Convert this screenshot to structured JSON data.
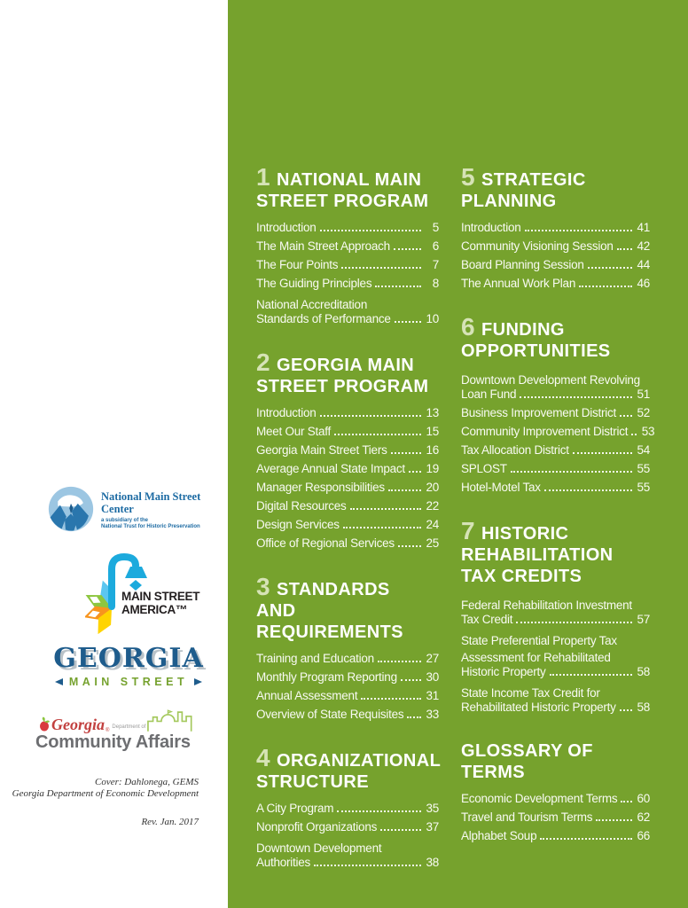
{
  "colors": {
    "green_background": "#76a22d",
    "section_number": "#d6e3b6",
    "heading_text": "#ffffff",
    "item_text": "#f8faf3",
    "nmsc_blue": "#1d6ba3",
    "msa_teal": "#1caadd",
    "gms_blue": "#1e5c8c",
    "gms_green": "#76a22f",
    "dca_red": "#c2403f",
    "dca_gray": "#6d6e71",
    "dca_skyline_green": "#a5c95e"
  },
  "left_panel": {
    "nmsc": {
      "name_line1": "National Main Street",
      "name_line2": "Center",
      "tagline_line1": "a subsidiary of the",
      "tagline_line2": "National Trust for Historic Preservation"
    },
    "msa": {
      "line1": "MAIN STREET",
      "line2": "AMERICA™"
    },
    "gms": {
      "line1": "GEORGIA",
      "line2": "MAIN STREET"
    },
    "dca": {
      "georgia": "Georgia",
      "registered": "®",
      "dept": "Department of",
      "name": "Community Affairs"
    },
    "caption_line1": "Cover: Dahlonega, GEMS",
    "caption_line2": "Georgia Department of Economic Development",
    "revision": "Rev. Jan. 2017"
  },
  "toc": {
    "columns": [
      {
        "sections": [
          {
            "number": "1",
            "title": "NATIONAL MAIN\nSTREET PROGRAM",
            "items": [
              {
                "lines": [
                  "Introduction"
                ],
                "page": "5"
              },
              {
                "lines": [
                  "The Main Street Approach"
                ],
                "page": "6"
              },
              {
                "lines": [
                  "The Four Points"
                ],
                "page": "7"
              },
              {
                "lines": [
                  "The Guiding Principles"
                ],
                "page": "8"
              },
              {
                "lines": [
                  "National Accreditation",
                  "Standards of Performance"
                ],
                "page": "10"
              }
            ]
          },
          {
            "number": "2",
            "title": "GEORGIA MAIN\nSTREET PROGRAM",
            "items": [
              {
                "lines": [
                  "Introduction"
                ],
                "page": "13"
              },
              {
                "lines": [
                  "Meet Our Staff"
                ],
                "page": "15"
              },
              {
                "lines": [
                  "Georgia Main Street Tiers"
                ],
                "page": "16"
              },
              {
                "lines": [
                  "Average Annual State Impact"
                ],
                "page": "19"
              },
              {
                "lines": [
                  "Manager Responsibilities"
                ],
                "page": "20"
              },
              {
                "lines": [
                  "Digital Resources"
                ],
                "page": "22"
              },
              {
                "lines": [
                  "Design Services"
                ],
                "page": "24"
              },
              {
                "lines": [
                  "Office of Regional Services"
                ],
                "page": "25"
              }
            ]
          },
          {
            "number": "3",
            "title": "STANDARDS\nAND REQUIREMENTS",
            "items": [
              {
                "lines": [
                  "Training and Education"
                ],
                "page": "27"
              },
              {
                "lines": [
                  "Monthly Program Reporting"
                ],
                "page": "30"
              },
              {
                "lines": [
                  "Annual Assessment"
                ],
                "page": "31"
              },
              {
                "lines": [
                  "Overview of State Requisites"
                ],
                "page": "33"
              }
            ]
          },
          {
            "number": "4",
            "title": "ORGANIZATIONAL\nSTRUCTURE",
            "items": [
              {
                "lines": [
                  "A City Program"
                ],
                "page": "35"
              },
              {
                "lines": [
                  "Nonprofit Organizations"
                ],
                "page": "37"
              },
              {
                "lines": [
                  "Downtown Development",
                  "Authorities"
                ],
                "page": "38"
              }
            ]
          }
        ]
      },
      {
        "sections": [
          {
            "number": "5",
            "title": "STRATEGIC\nPLANNING",
            "items": [
              {
                "lines": [
                  "Introduction"
                ],
                "page": "41"
              },
              {
                "lines": [
                  "Community Visioning Session"
                ],
                "page": "42"
              },
              {
                "lines": [
                  "Board Planning Session"
                ],
                "page": "44"
              },
              {
                "lines": [
                  "The Annual Work Plan"
                ],
                "page": "46"
              }
            ]
          },
          {
            "number": "6",
            "title": "FUNDING\nOPPORTUNITIES",
            "items": [
              {
                "lines": [
                  "Downtown Development Revolving",
                  "Loan Fund"
                ],
                "page": "51"
              },
              {
                "lines": [
                  "Business Improvement District"
                ],
                "page": "52"
              },
              {
                "lines": [
                  "Community Improvement District"
                ],
                "page": "53"
              },
              {
                "lines": [
                  "Tax Allocation District"
                ],
                "page": "54"
              },
              {
                "lines": [
                  "SPLOST"
                ],
                "page": "55"
              },
              {
                "lines": [
                  "Hotel-Motel Tax"
                ],
                "page": "55"
              }
            ]
          },
          {
            "number": "7",
            "title": "HISTORIC\nREHABILITATION\nTAX CREDITS",
            "items": [
              {
                "lines": [
                  "Federal Rehabilitation Investment",
                  "Tax Credit"
                ],
                "page": "57"
              },
              {
                "lines": [
                  "State Preferential Property Tax",
                  "Assessment for Rehabilitated",
                  "Historic Property"
                ],
                "page": "58"
              },
              {
                "lines": [
                  "State Income Tax Credit for",
                  "Rehabilitated Historic Property"
                ],
                "page": "58"
              }
            ]
          },
          {
            "number": null,
            "title": "GLOSSARY OF TERMS",
            "items": [
              {
                "lines": [
                  "Economic Development Terms"
                ],
                "page": "60"
              },
              {
                "lines": [
                  "Travel and Tourism Terms"
                ],
                "page": "62"
              },
              {
                "lines": [
                  "Alphabet Soup"
                ],
                "page": "66"
              }
            ]
          }
        ]
      }
    ]
  }
}
